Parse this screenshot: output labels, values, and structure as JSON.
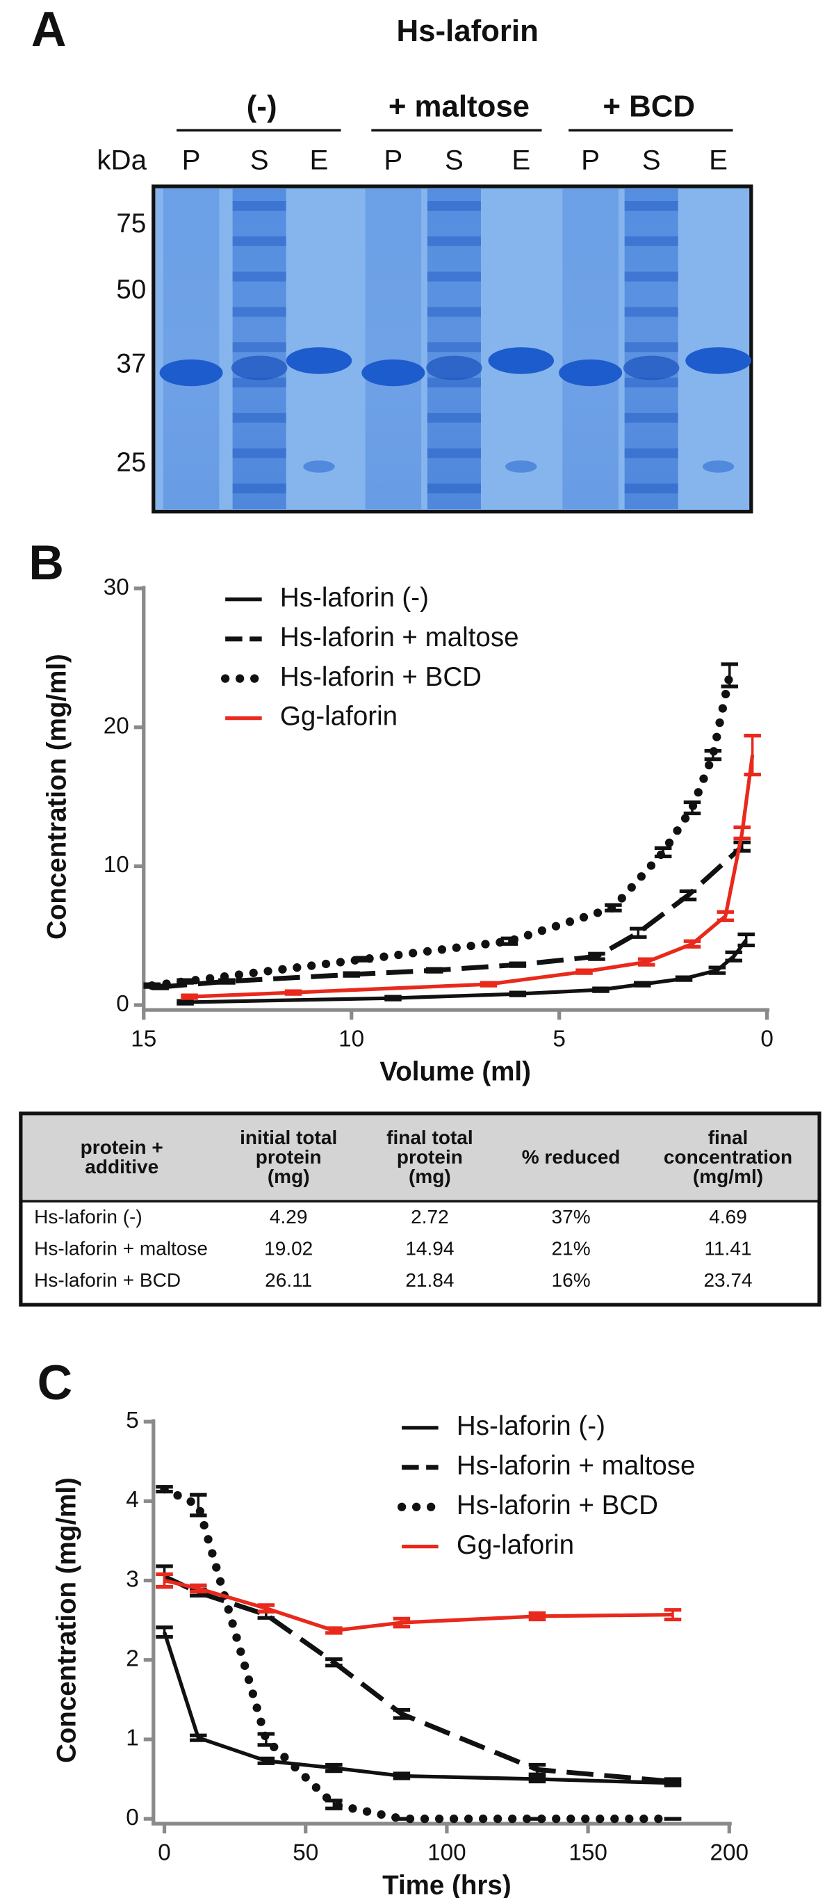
{
  "panel_labels": [
    "A",
    "B",
    "C"
  ],
  "gel": {
    "title": "Hs-laforin",
    "groups": [
      "(-)",
      "+ maltose",
      "+ BCD"
    ],
    "unit": "kDa",
    "lanes": [
      "P",
      "S",
      "E",
      "P",
      "S",
      "E",
      "P",
      "S",
      "E"
    ],
    "markers": [
      75,
      50,
      37,
      25
    ]
  },
  "chart_data": [
    {
      "type": "line",
      "xlabel": "Volume (ml)",
      "ylabel": "Concentration (mg/ml)",
      "xlim": [
        15,
        0
      ],
      "xticks": [
        15,
        10,
        5,
        0
      ],
      "ylim": [
        0,
        30
      ],
      "yticks": [
        0,
        10,
        20,
        30
      ],
      "legend": "upper left",
      "series": [
        {
          "name": "Hs-laforin (-)",
          "color": "#111111",
          "style": "solid",
          "x": [
            14,
            9,
            6,
            4,
            3,
            2,
            1.2,
            0.8,
            0.5
          ],
          "values": [
            0.2,
            0.5,
            0.8,
            1.1,
            1.5,
            1.9,
            2.5,
            3.5,
            4.69
          ],
          "errors": [
            0.1,
            0.1,
            0.1,
            0.1,
            0.1,
            0.1,
            0.2,
            0.3,
            0.4
          ]
        },
        {
          "name": "Hs-laforin + maltose",
          "color": "#111111",
          "style": "dashed",
          "x": [
            14.6,
            13,
            10,
            8,
            6,
            4.1,
            3.1,
            1.9,
            0.6
          ],
          "values": [
            1.3,
            1.7,
            2.2,
            2.5,
            2.9,
            3.5,
            5.2,
            7.9,
            11.41
          ],
          "errors": [
            0.1,
            0.1,
            0.1,
            0.1,
            0.1,
            0.2,
            0.3,
            0.3,
            0.3
          ]
        },
        {
          "name": "Hs-laforin + BCD",
          "color": "#111111",
          "style": "dotted",
          "x": [
            14.8,
            14,
            9.7,
            6.2,
            3.7,
            2.5,
            1.8,
            1.3,
            0.9
          ],
          "values": [
            1.4,
            1.7,
            3.3,
            4.6,
            7.0,
            11.0,
            14.2,
            18.0,
            23.74
          ],
          "errors": [
            0.1,
            0.1,
            0.1,
            0.2,
            0.2,
            0.3,
            0.4,
            0.3,
            0.8
          ]
        },
        {
          "name": "Gg-laforin",
          "color": "#e8291c",
          "style": "solid",
          "x": [
            13.9,
            11.4,
            6.7,
            4.4,
            2.9,
            1.8,
            1.0,
            0.6,
            0.35
          ],
          "values": [
            0.6,
            0.9,
            1.5,
            2.4,
            3.1,
            4.4,
            6.4,
            12.4,
            18.0
          ],
          "errors": [
            0.1,
            0.1,
            0.1,
            0.1,
            0.2,
            0.2,
            0.3,
            0.4,
            1.4
          ]
        }
      ]
    },
    {
      "type": "line",
      "xlabel": "Time (hrs)",
      "ylabel": "Concentration (mg/ml)",
      "xlim": [
        0,
        200
      ],
      "xticks": [
        0,
        50,
        100,
        150,
        200
      ],
      "ylim": [
        0,
        5
      ],
      "yticks": [
        0,
        1,
        2,
        3,
        4,
        5
      ],
      "legend": "upper right",
      "series": [
        {
          "name": "Hs-laforin (-)",
          "color": "#111111",
          "style": "solid",
          "x": [
            0,
            12,
            36,
            60,
            84,
            132,
            180
          ],
          "values": [
            2.35,
            1.02,
            0.73,
            0.64,
            0.54,
            0.5,
            0.45
          ],
          "errors": [
            0.06,
            0.03,
            0.03,
            0.04,
            0.03,
            0.03,
            0.03
          ]
        },
        {
          "name": "Hs-laforin + maltose",
          "color": "#111111",
          "style": "dashed",
          "x": [
            0,
            12,
            36,
            60,
            84,
            132,
            180
          ],
          "values": [
            3.05,
            2.85,
            2.57,
            1.97,
            1.32,
            0.62,
            0.47
          ],
          "errors": [
            0.13,
            0.04,
            0.04,
            0.04,
            0.05,
            0.06,
            0.03
          ]
        },
        {
          "name": "Hs-laforin + BCD",
          "color": "#111111",
          "style": "dotted",
          "x": [
            0,
            12,
            36,
            60,
            84,
            132,
            180
          ],
          "values": [
            4.15,
            3.95,
            1.0,
            0.18,
            0,
            0,
            0
          ],
          "errors": [
            0.03,
            0.13,
            0.07,
            0.05,
            0,
            0,
            0
          ]
        },
        {
          "name": "Gg-laforin",
          "color": "#e8291c",
          "style": "solid",
          "x": [
            0,
            12,
            36,
            60,
            84,
            132,
            180
          ],
          "values": [
            3.0,
            2.9,
            2.65,
            2.37,
            2.47,
            2.55,
            2.57
          ],
          "errors": [
            0.08,
            0.04,
            0.04,
            0.03,
            0.05,
            0.04,
            0.06
          ]
        }
      ]
    }
  ],
  "table": {
    "header": [
      [
        "protein +",
        "additive"
      ],
      [
        "initial total",
        "protein",
        "(mg)"
      ],
      [
        "final total",
        "protein",
        "(mg)"
      ],
      [
        "% reduced"
      ],
      [
        "final",
        "concentration",
        "(mg/ml)"
      ]
    ],
    "rows": [
      [
        "Hs-laforin (-)",
        "4.29",
        "2.72",
        "37%",
        "4.69"
      ],
      [
        "Hs-laforin + maltose",
        "19.02",
        "14.94",
        "21%",
        "11.41"
      ],
      [
        "Hs-laforin + BCD",
        "26.11",
        "21.84",
        "16%",
        "23.74"
      ]
    ]
  }
}
